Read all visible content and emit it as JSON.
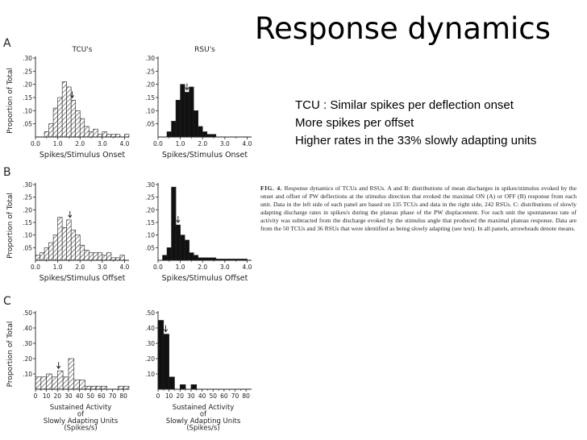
{
  "slide": {
    "title": "Response dynamics",
    "bullets": [
      "TCU : Similar spikes per deflection onset",
      "More spikes per offset",
      "Higher rates in the 33% slowly adapting units"
    ],
    "caption_label": "FIG. 4.",
    "caption_text": "Response dynamics of TCUs and RSUs. A and B: distributions of mean discharges in spikes/stimulus evoked by the onset and offset of PW deflections at the stimulus direction that evoked the maximal ON (A) or OFF (B) response from each unit. Data in the left side of each panel are based on 135 TCUs and data in the right side, 242 RSUs. C: distributions of slowly adapting discharge rates in spikes/s during the plateau phase of the PW displacement. For each unit the spontaneous rate of activity was subtracted from the discharge evoked by the stimulus angle that produced the maximal plateau response. Data are from the 50 TCUs and 36 RSUs that were identified as being slowly adapting (see text). In all panels, arrowheads denote means."
  },
  "colors": {
    "hatch": "#444444",
    "solid": "#111111",
    "axis": "#222222"
  },
  "chart_data": [
    {
      "type": "bar",
      "panel": "A",
      "title": "TCU's",
      "fill": "hatched",
      "xlabel": "Spikes/Stimulus Onset",
      "ylabel": "Proportion of Total",
      "xlim": [
        0,
        4.2
      ],
      "ylim": [
        0,
        0.3
      ],
      "bin_width": 0.2,
      "xticks": [
        "0.0",
        "1.0",
        "2.0",
        "3.0",
        "4.0"
      ],
      "yticks": [
        ".05",
        ".10",
        ".15",
        ".20",
        ".25",
        ".30"
      ],
      "bins": [
        0.4,
        0.6,
        0.8,
        1.0,
        1.2,
        1.4,
        1.6,
        1.8,
        2.0,
        2.2,
        2.4,
        2.6,
        2.8,
        3.0,
        3.2,
        3.4,
        3.6,
        3.8,
        4.0
      ],
      "values": [
        0.02,
        0.05,
        0.11,
        0.15,
        0.21,
        0.19,
        0.14,
        0.1,
        0.07,
        0.04,
        0.02,
        0.03,
        0.01,
        0.02,
        0.01,
        0.01,
        0.01,
        0.0,
        0.01
      ],
      "mean": 1.65
    },
    {
      "type": "bar",
      "panel": "A",
      "title": "RSU's",
      "fill": "solid",
      "xlabel": "Spikes/Stimulus Onset",
      "ylabel": "",
      "xlim": [
        0,
        4.2
      ],
      "ylim": [
        0,
        0.3
      ],
      "bin_width": 0.2,
      "xticks": [
        "0.0",
        "1.0",
        "2.0",
        "3.0",
        "4.0"
      ],
      "yticks": [
        ".05",
        ".10",
        ".15",
        ".20",
        ".25",
        ".30"
      ],
      "bins": [
        0.4,
        0.6,
        0.8,
        1.0,
        1.2,
        1.4,
        1.6,
        1.8,
        2.0,
        2.2,
        2.4
      ],
      "values": [
        0.02,
        0.06,
        0.14,
        0.2,
        0.17,
        0.19,
        0.1,
        0.04,
        0.02,
        0.01,
        0.01
      ],
      "mean": 1.3
    },
    {
      "type": "bar",
      "panel": "B",
      "title": "",
      "fill": "hatched",
      "xlabel": "Spikes/Stimulus Offset",
      "ylabel": "Proportion of Total",
      "xlim": [
        0,
        4.2
      ],
      "ylim": [
        0,
        0.3
      ],
      "bin_width": 0.2,
      "xticks": [
        "0.0",
        "1.0",
        "2.0",
        "3.0",
        "4.0"
      ],
      "yticks": [
        ".05",
        ".10",
        ".15",
        ".20",
        ".25",
        ".30"
      ],
      "bins": [
        0.0,
        0.2,
        0.4,
        0.6,
        0.8,
        1.0,
        1.2,
        1.4,
        1.6,
        1.8,
        2.0,
        2.2,
        2.4,
        2.6,
        2.8,
        3.0,
        3.2,
        3.4,
        3.6,
        3.8
      ],
      "values": [
        0.02,
        0.03,
        0.05,
        0.07,
        0.1,
        0.17,
        0.13,
        0.16,
        0.12,
        0.1,
        0.06,
        0.04,
        0.03,
        0.03,
        0.03,
        0.02,
        0.03,
        0.01,
        0.01,
        0.02
      ],
      "mean": 1.55
    },
    {
      "type": "bar",
      "panel": "B",
      "title": "",
      "fill": "solid",
      "xlabel": "Spikes/Stimulus Offset",
      "ylabel": "",
      "xlim": [
        0,
        4.2
      ],
      "ylim": [
        0,
        0.3
      ],
      "bin_width": 0.2,
      "xticks": [
        "0.0",
        "1.0",
        "2.0",
        "3.0",
        "4.0"
      ],
      "yticks": [
        ".05",
        ".10",
        ".15",
        ".20",
        ".25",
        ".30"
      ],
      "bins": [
        0.2,
        0.4,
        0.6,
        0.8,
        1.0,
        1.2,
        1.4,
        1.6,
        1.8,
        2.0,
        2.2,
        2.4,
        2.6,
        2.8,
        3.0,
        3.2,
        3.4,
        3.6,
        3.8
      ],
      "values": [
        0.02,
        0.05,
        0.29,
        0.14,
        0.1,
        0.08,
        0.03,
        0.02,
        0.01,
        0.01,
        0.01,
        0.01,
        0.005,
        0.005,
        0.005,
        0.005,
        0.005,
        0.005,
        0.005
      ],
      "mean": 0.9
    },
    {
      "type": "bar",
      "panel": "C",
      "title": "",
      "fill": "hatched",
      "xlabel": "Sustained Activity of Slowly Adapting Units (Spikes/s)",
      "ylabel": "Proportion of Total",
      "xlim": [
        0,
        85
      ],
      "ylim": [
        0,
        0.5
      ],
      "bin_width": 5,
      "xticks": [
        "0",
        "10",
        "20",
        "30",
        "40",
        "50",
        "60",
        "70",
        "80"
      ],
      "yticks": [
        ".10",
        ".20",
        ".30",
        ".40",
        ".50"
      ],
      "bins": [
        0,
        5,
        10,
        15,
        20,
        25,
        30,
        35,
        40,
        45,
        50,
        55,
        60,
        65,
        70,
        75,
        80
      ],
      "values": [
        0.08,
        0.08,
        0.1,
        0.08,
        0.12,
        0.08,
        0.2,
        0.06,
        0.06,
        0.02,
        0.02,
        0.02,
        0.02,
        0.0,
        0.0,
        0.02,
        0.02
      ],
      "mean": 21
    },
    {
      "type": "bar",
      "panel": "C",
      "title": "",
      "fill": "solid",
      "xlabel": "Sustained Activity of Slowly Adapting Units (Spikes/s)",
      "ylabel": "",
      "xlim": [
        0,
        85
      ],
      "ylim": [
        0,
        0.5
      ],
      "bin_width": 5,
      "xticks": [
        "0",
        "10",
        "20",
        "30",
        "40",
        "50",
        "60",
        "70",
        "80"
      ],
      "yticks": [
        ".10",
        ".20",
        ".30",
        ".40",
        ".50"
      ],
      "bins": [
        0,
        5,
        10,
        15,
        20,
        25,
        30,
        35,
        40
      ],
      "values": [
        0.45,
        0.36,
        0.08,
        0.0,
        0.03,
        0.0,
        0.03,
        0.0,
        0.0
      ],
      "mean": 7
    }
  ]
}
